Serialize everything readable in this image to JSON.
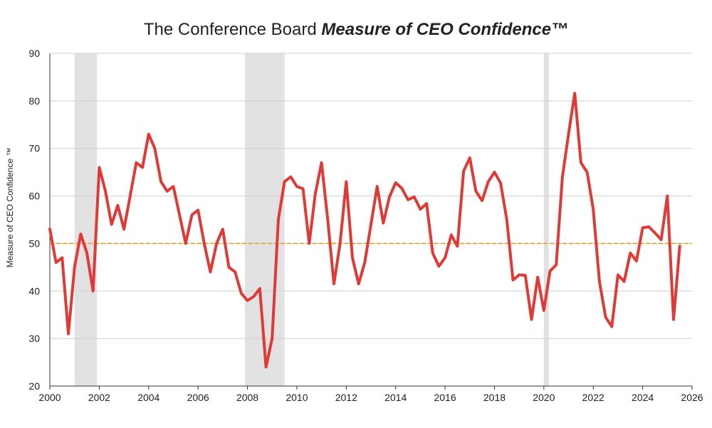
{
  "chart_data": {
    "type": "line",
    "title_plain": "The Conference Board ",
    "title_emph": "Measure of CEO Confidence™",
    "ylabel": "Measure of CEO Confidence ™",
    "xlabel": "",
    "ylim": [
      20,
      90
    ],
    "xlim": [
      2000,
      2026
    ],
    "yticks": [
      20,
      30,
      40,
      50,
      60,
      70,
      80,
      90
    ],
    "xticks": [
      2000,
      2002,
      2004,
      2006,
      2008,
      2010,
      2012,
      2014,
      2016,
      2018,
      2020,
      2022,
      2024,
      2026
    ],
    "grid": true,
    "reference_line": 50,
    "recessions": [
      [
        2001.0,
        2001.9
      ],
      [
        2007.9,
        2009.5
      ],
      [
        2020.0,
        2020.2
      ]
    ],
    "series": [
      {
        "name": "Measure of CEO Confidence",
        "color": "#e03a36",
        "x": [
          2000.0,
          2000.25,
          2000.5,
          2000.75,
          2001.0,
          2001.25,
          2001.5,
          2001.75,
          2002.0,
          2002.25,
          2002.5,
          2002.75,
          2003.0,
          2003.25,
          2003.5,
          2003.75,
          2004.0,
          2004.25,
          2004.5,
          2004.75,
          2005.0,
          2005.25,
          2005.5,
          2005.75,
          2006.0,
          2006.25,
          2006.5,
          2006.75,
          2007.0,
          2007.25,
          2007.5,
          2007.75,
          2008.0,
          2008.25,
          2008.5,
          2008.75,
          2009.0,
          2009.25,
          2009.5,
          2009.75,
          2010.0,
          2010.25,
          2010.5,
          2010.75,
          2011.0,
          2011.25,
          2011.5,
          2011.75,
          2012.0,
          2012.25,
          2012.5,
          2012.75,
          2013.0,
          2013.25,
          2013.5,
          2013.75,
          2014.0,
          2014.25,
          2014.5,
          2014.75,
          2015.0,
          2015.25,
          2015.5,
          2015.75,
          2016.0,
          2016.25,
          2016.5,
          2016.75,
          2017.0,
          2017.25,
          2017.5,
          2017.75,
          2018.0,
          2018.25,
          2018.5,
          2018.75,
          2019.0,
          2019.25,
          2019.5,
          2019.75,
          2020.0,
          2020.25,
          2020.5,
          2020.75,
          2021.0,
          2021.25,
          2021.5,
          2021.75,
          2022.0,
          2022.25,
          2022.5,
          2022.75,
          2023.0,
          2023.25,
          2023.5,
          2023.75,
          2024.0,
          2024.25,
          2024.5,
          2024.75,
          2025.0,
          2025.25,
          2025.5
        ],
        "values": [
          53,
          46,
          47,
          31,
          45,
          52,
          48,
          40,
          66,
          61,
          54,
          58,
          53,
          60,
          67,
          66,
          73,
          70,
          63,
          61,
          62,
          56,
          50,
          56,
          57,
          50,
          44,
          50,
          53,
          45,
          44,
          39.5,
          38,
          38.8,
          40.5,
          24,
          30,
          55,
          63,
          64,
          62,
          61.5,
          50,
          60.5,
          67,
          55,
          41.5,
          50,
          63,
          47,
          41.5,
          46,
          54,
          62,
          54.3,
          59.8,
          62.8,
          61.6,
          59.2,
          59.8,
          57.2,
          58.4,
          48,
          45.2,
          47,
          51.8,
          49.4,
          65.2,
          68,
          61,
          59,
          63,
          65,
          62.7,
          55,
          42.3,
          43.4,
          43.3,
          34,
          42.9,
          35.9,
          44.2,
          45.5,
          64,
          73,
          81.6,
          67,
          65,
          57.2,
          42,
          34.5,
          32.5,
          43.4,
          42,
          48,
          46.3,
          53.3,
          53.5,
          52.2,
          50.8,
          60,
          34,
          49.4
        ]
      }
    ]
  }
}
